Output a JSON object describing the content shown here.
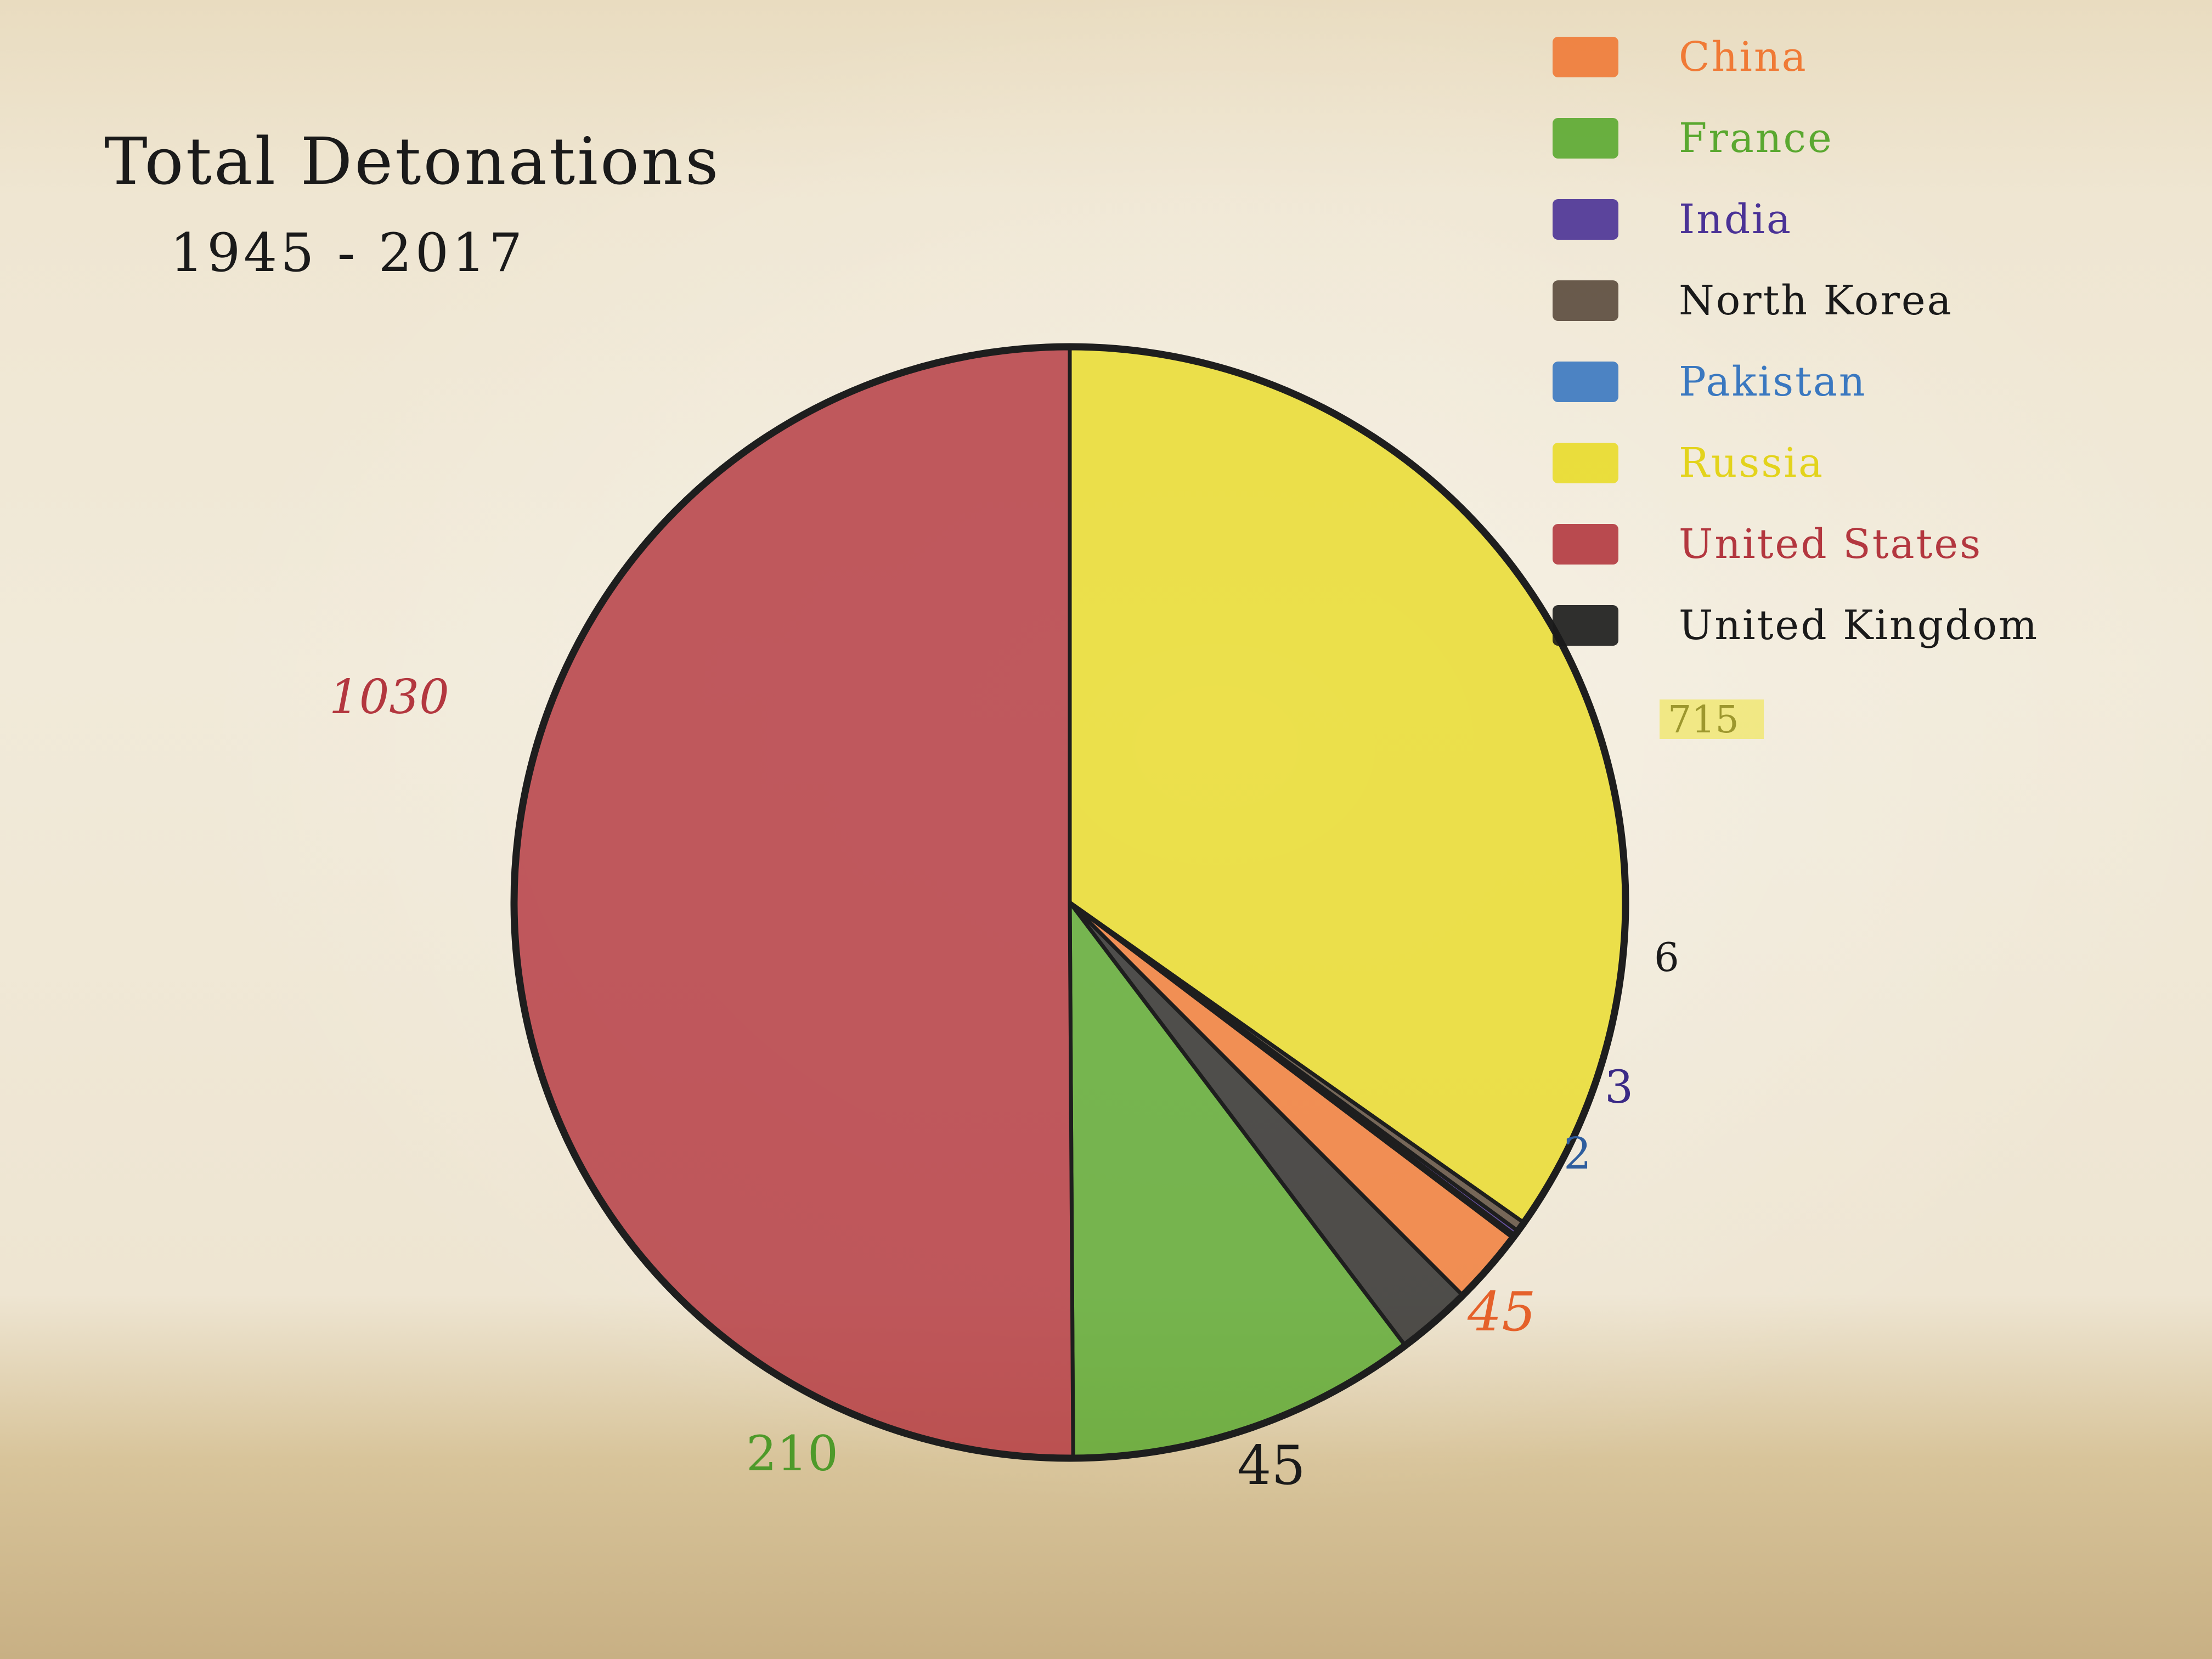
{
  "chart_data": {
    "type": "pie",
    "title": "Total Detonations",
    "subtitle": "1945 - 2017",
    "legend_position": "top-right",
    "slices": [
      {
        "name": "Russia",
        "value": 715,
        "label": "715",
        "color": "#e9dc2a"
      },
      {
        "name": "North Korea",
        "value": 6,
        "label": "6",
        "color": "#5a4a3c"
      },
      {
        "name": "India",
        "value": 3,
        "label": "3",
        "color": "#4a3296"
      },
      {
        "name": "Pakistan",
        "value": 2,
        "label": "2",
        "color": "#3a78c0"
      },
      {
        "name": "China",
        "value": 45,
        "label": "45",
        "color": "#f07a36"
      },
      {
        "name": "United Kingdom",
        "value": 45,
        "label": "45",
        "color": "#2b2b2b"
      },
      {
        "name": "France",
        "value": 210,
        "label": "210",
        "color": "#5aa830"
      },
      {
        "name": "United States",
        "value": 1030,
        "label": "1030",
        "color": "#b3373f"
      }
    ]
  },
  "legend": [
    {
      "label": "China",
      "color": "#f07a36"
    },
    {
      "label": "France",
      "color": "#5aa830"
    },
    {
      "label": "India",
      "color": "#4a3296"
    },
    {
      "label": "North Korea",
      "color": "#5a4a3c"
    },
    {
      "label": "Pakistan",
      "color": "#3a78c0"
    },
    {
      "label": "Russia",
      "color": "#e9dc2a"
    },
    {
      "label": "United States",
      "color": "#b3373f"
    },
    {
      "label": "United Kingdom",
      "color": "#1a1a1a"
    }
  ],
  "value_labels": {
    "us": "1030",
    "russia": "715",
    "north_korea": "6",
    "india": "3",
    "pakistan": "2",
    "china": "45",
    "uk": "45",
    "france": "210"
  }
}
